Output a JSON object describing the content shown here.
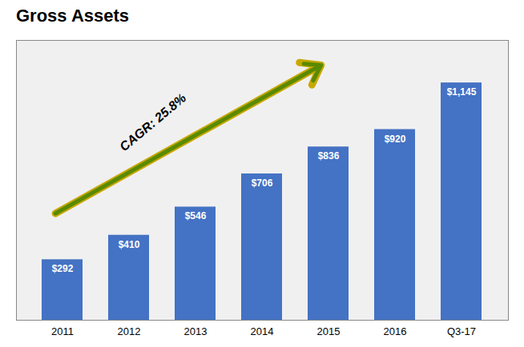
{
  "chart_data": {
    "type": "bar",
    "title": "Gross Assets",
    "categories": [
      "2011",
      "2012",
      "2013",
      "2014",
      "2015",
      "2016",
      "Q3-17"
    ],
    "values": [
      292,
      410,
      546,
      706,
      836,
      920,
      1145
    ],
    "value_labels": [
      "$292",
      "$410",
      "$546",
      "$706",
      "$836",
      "$920",
      "$1,145"
    ],
    "data_labels": true,
    "color": "#4472C4",
    "ylim": [
      0,
      1350
    ],
    "tick_labels": "x",
    "annotations": [
      "CAGR: 25.8%"
    ]
  }
}
